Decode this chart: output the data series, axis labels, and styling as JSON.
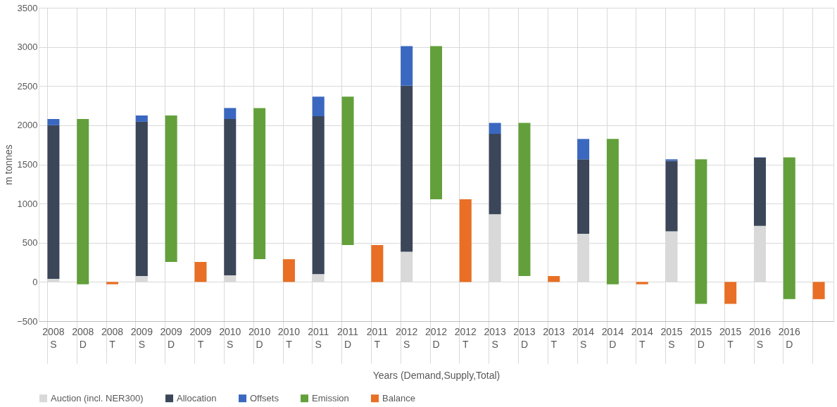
{
  "chart_data": {
    "type": "bar",
    "stacked": true,
    "xlabel": "Years (Demand,Supply,Total)",
    "ylabel": "m tonnes",
    "categories": [
      "2008 S",
      "2008 D",
      "2008 T",
      "2009 S",
      "2009 D",
      "2009 T",
      "2010 S",
      "2010 D",
      "2010 T",
      "2011 S",
      "2011 D",
      "2011 T",
      "2012 S",
      "2012 D",
      "2012 T",
      "2013 S",
      "2013 D",
      "2013 T",
      "2014 S",
      "2014 D",
      "2014 T",
      "2015 S",
      "2015 D",
      "2015 T",
      "2016 S",
      "2016 D",
      null
    ],
    "series": [
      {
        "name": "Auction (incl. NER300)",
        "color": "#d9d9d9",
        "values": [
          40,
          null,
          null,
          75,
          null,
          null,
          85,
          null,
          null,
          100,
          null,
          null,
          385,
          null,
          null,
          865,
          null,
          null,
          615,
          null,
          null,
          645,
          null,
          null,
          715,
          null,
          null
        ]
      },
      {
        "name": "Allocation",
        "color": "#3b4659",
        "values": [
          1960,
          null,
          null,
          1970,
          null,
          null,
          1995,
          null,
          null,
          2015,
          null,
          null,
          2120,
          null,
          null,
          1025,
          null,
          null,
          950,
          null,
          null,
          900,
          null,
          null,
          870,
          null,
          null
        ]
      },
      {
        "name": "Offsets",
        "color": "#3a68c0",
        "values": [
          80,
          null,
          null,
          80,
          null,
          null,
          140,
          null,
          null,
          250,
          null,
          null,
          505,
          null,
          null,
          140,
          null,
          null,
          260,
          null,
          null,
          20,
          null,
          null,
          5,
          null,
          null
        ]
      },
      {
        "name": "Emission",
        "color": "#63a03b",
        "values": [
          null,
          2110,
          null,
          null,
          1870,
          null,
          null,
          1930,
          null,
          null,
          1895,
          null,
          null,
          1955,
          null,
          null,
          1955,
          null,
          null,
          1855,
          null,
          null,
          1845,
          null,
          null,
          1810,
          null
        ],
        "base": [
          null,
          -30,
          null,
          null,
          255,
          null,
          null,
          290,
          null,
          null,
          470,
          null,
          null,
          1055,
          null,
          null,
          75,
          null,
          null,
          -30,
          null,
          null,
          -280,
          null,
          null,
          -220,
          null
        ]
      },
      {
        "name": "Balance",
        "color": "#e86f25",
        "values": [
          null,
          null,
          -30,
          null,
          null,
          255,
          null,
          null,
          290,
          null,
          null,
          470,
          null,
          null,
          1055,
          null,
          null,
          75,
          null,
          null,
          -30,
          null,
          null,
          -280,
          null,
          null,
          -220
        ]
      }
    ],
    "ylim": [
      -500,
      3500
    ],
    "yticks": [
      -500,
      0,
      500,
      1000,
      1500,
      2000,
      2500,
      3000,
      3500
    ],
    "grid": true,
    "legend": "bottom"
  }
}
